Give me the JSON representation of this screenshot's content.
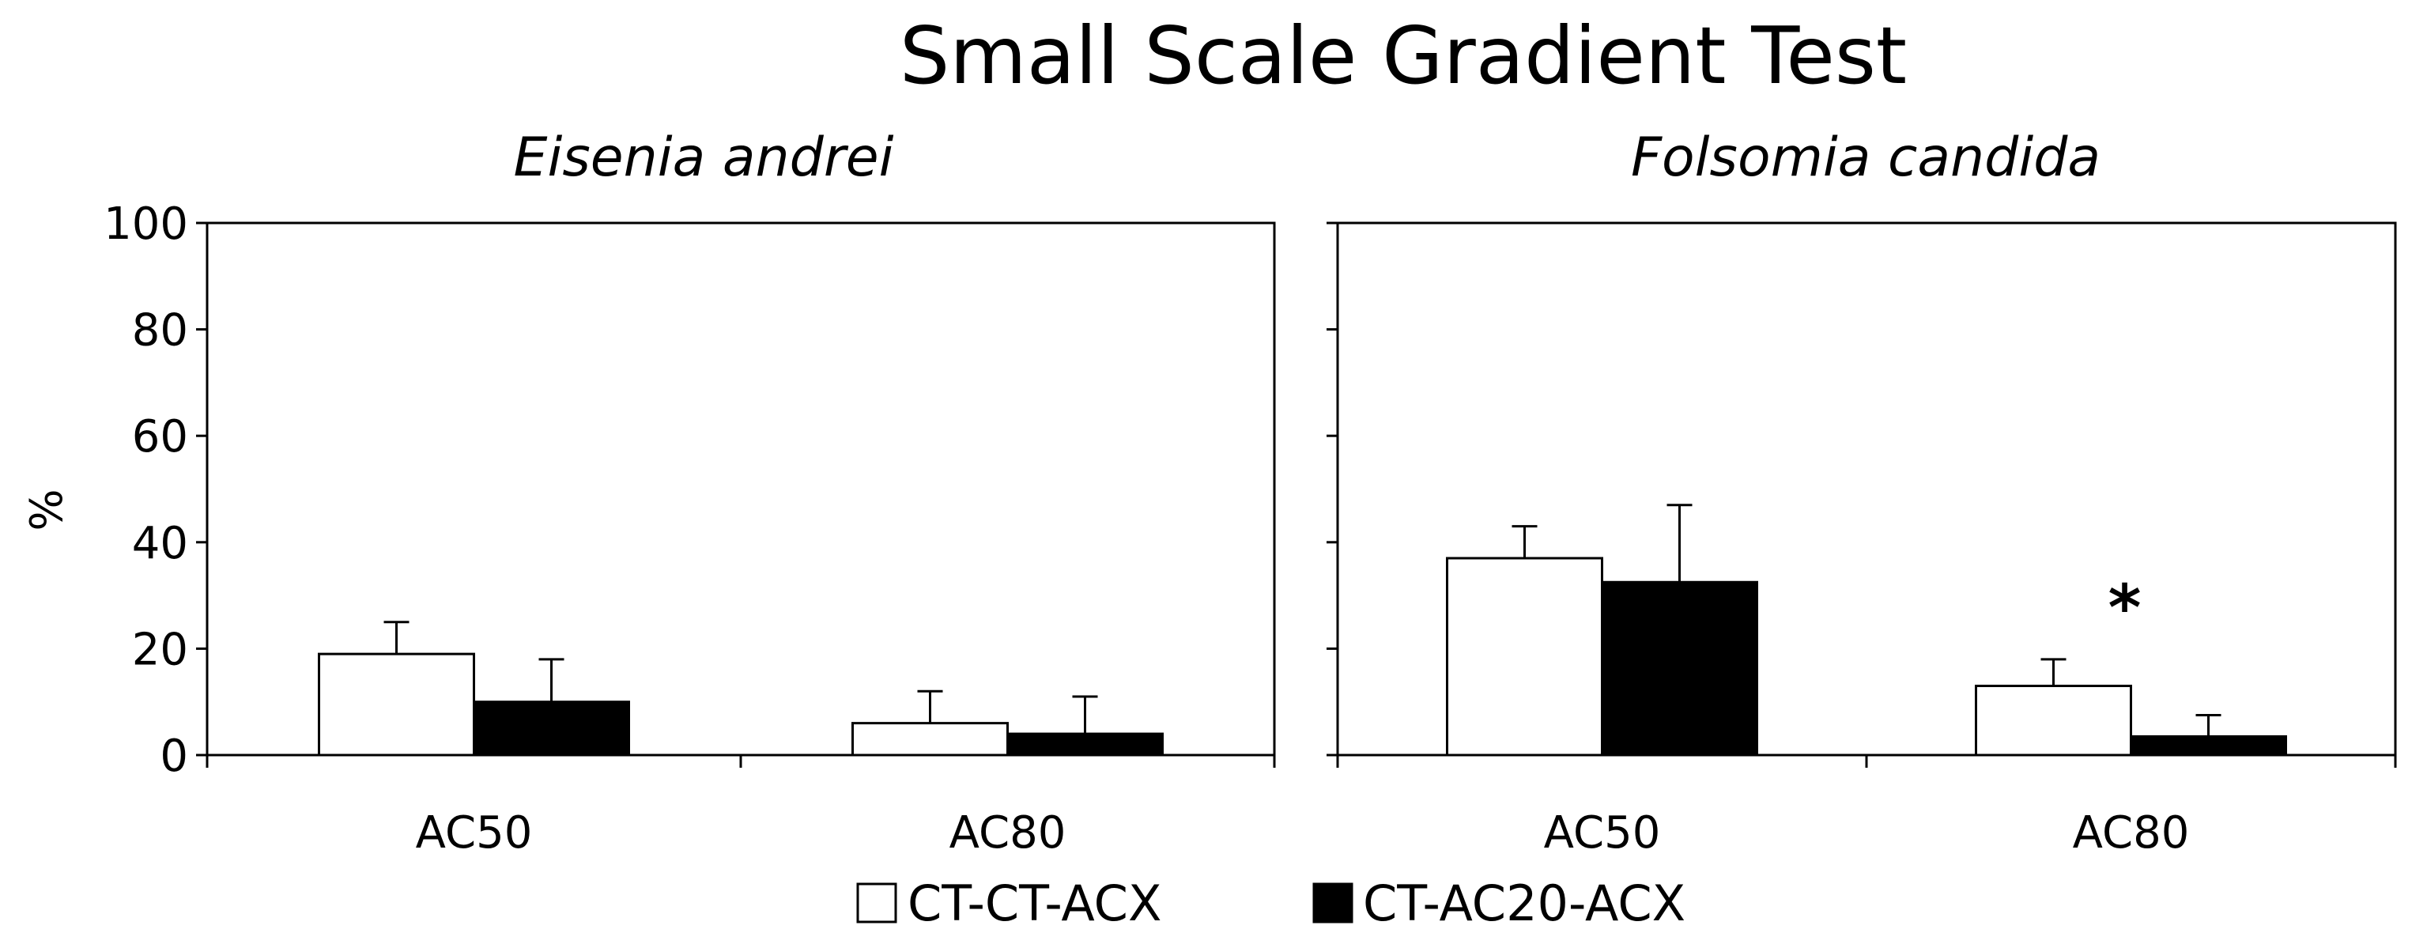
{
  "chart_data": {
    "title": "Small Scale Gradient Test",
    "ylabel": "%",
    "ylim": [
      0,
      100
    ],
    "yticks": [
      "0",
      "20",
      "40",
      "60",
      "80",
      "100"
    ],
    "categories": [
      "AC50",
      "AC80"
    ],
    "legend": {
      "position": "bottom-center",
      "entries": [
        {
          "name": "CT-CT-ACX",
          "fill": "#ffffff"
        },
        {
          "name": "CT-AC20-ACX",
          "fill": "#000000"
        }
      ]
    },
    "panels": [
      {
        "type": "bar",
        "title": "Eisenia andrei",
        "series": [
          {
            "name": "CT-CT-ACX",
            "values": [
              19,
              6
            ],
            "errors": [
              6,
              6
            ]
          },
          {
            "name": "CT-AC20-ACX",
            "values": [
              10,
              4
            ],
            "errors": [
              8,
              7
            ]
          }
        ],
        "annotations": []
      },
      {
        "type": "bar",
        "title": "Folsomia candida",
        "series": [
          {
            "name": "CT-CT-ACX",
            "values": [
              37,
              13
            ],
            "errors": [
              6,
              5
            ]
          },
          {
            "name": "CT-AC20-ACX",
            "values": [
              32.5,
              3.5
            ],
            "errors": [
              14.5,
              4
            ]
          }
        ],
        "annotations": [
          {
            "text": "*",
            "category": "AC80",
            "value": 28
          }
        ]
      }
    ]
  }
}
